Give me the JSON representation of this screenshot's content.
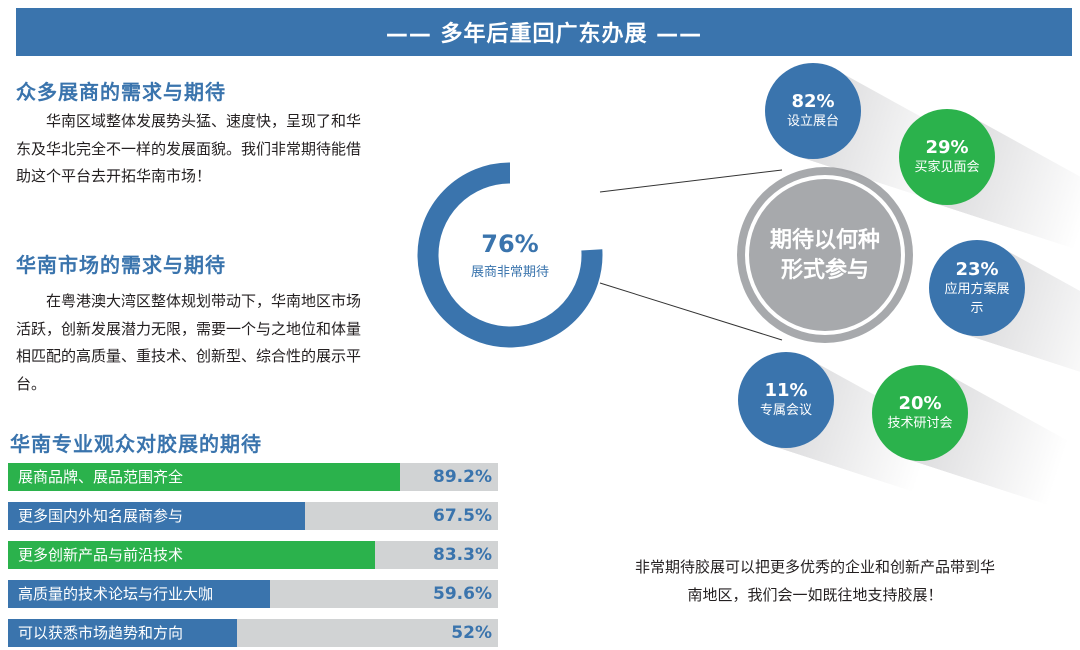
{
  "header": {
    "title": "—— 多年后重回广东办展 ——"
  },
  "section1": {
    "heading": "众多展商的需求与期待",
    "text": "华南区域整体发展势头猛、速度快，呈现了和华东及华北完全不一样的发展面貌。我们非常期待能借助这个平台去开拓华南市场！"
  },
  "section2": {
    "heading": "华南市场的需求与期待",
    "text": "在粤港澳大湾区整体规划带动下，华南地区市场活跃，创新发展潜力无限，需要一个与之地位和体量相匹配的高质量、重技术、创新型、综合性的展示平台。"
  },
  "section3": {
    "heading": "华南专业观众对胶展的期待"
  },
  "colors": {
    "blue": "#3a74ad",
    "green": "#2bb24c",
    "gray": "#a7a9ac",
    "track": "#d1d3d4"
  },
  "chart_data": [
    {
      "type": "bar",
      "orientation": "horizontal",
      "title": "华南专业观众对胶展的期待",
      "categories": [
        "展商品牌、展品范围齐全",
        "更多国内外知名展商参与",
        "更多创新产品与前沿技术",
        "高质量的技术论坛与行业大咖",
        "可以获悉市场趋势和方向"
      ],
      "values": [
        89.2,
        67.5,
        83.3,
        59.6,
        52
      ],
      "value_labels": [
        "89.2%",
        "67.5%",
        "83.3%",
        "59.6%",
        "52%"
      ],
      "bar_colors": [
        "#2bb24c",
        "#3a74ad",
        "#2bb24c",
        "#3a74ad",
        "#3a74ad"
      ],
      "xlim": [
        0,
        100
      ]
    },
    {
      "type": "pie",
      "style": "donut",
      "value": 76,
      "value_label": "76%",
      "label": "展商非常期待"
    },
    {
      "type": "bubble",
      "center_label": "期待以何种形式参与",
      "items": [
        {
          "value": 82,
          "pct": "82%",
          "label": "设立展台",
          "color": "#3a74ad"
        },
        {
          "value": 29,
          "pct": "29%",
          "label": "买家见面会",
          "color": "#2bb24c"
        },
        {
          "value": 23,
          "pct": "23%",
          "label": "应用方案展示",
          "color": "#3a74ad"
        },
        {
          "value": 11,
          "pct": "11%",
          "label": "专属会议",
          "color": "#3a74ad"
        },
        {
          "value": 20,
          "pct": "20%",
          "label": "技术研讨会",
          "color": "#2bb24c"
        }
      ]
    }
  ],
  "footer": {
    "text": "非常期待胶展可以把更多优秀的企业和创新产品带到华南地区，我们会一如既往地支持胶展！"
  }
}
